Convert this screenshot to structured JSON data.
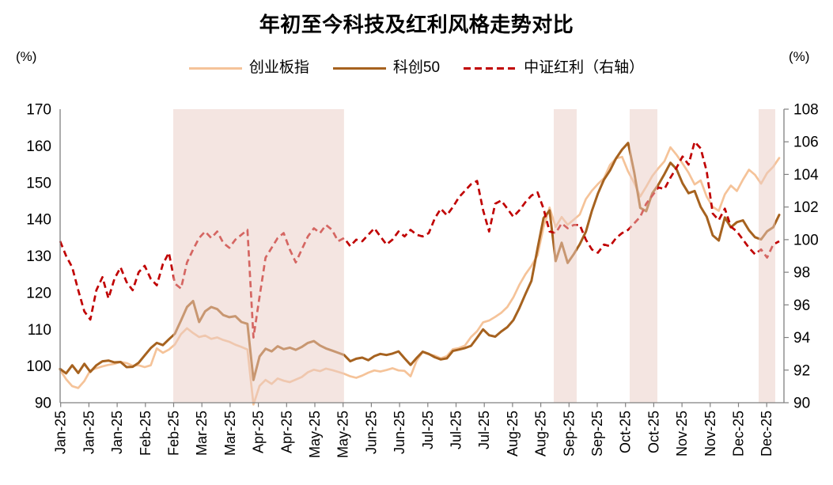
{
  "chart_data": {
    "type": "line",
    "title": "年初至今科技及红利风格走势对比",
    "legend_position": "top",
    "grid": false,
    "left_axis": {
      "unit": "(%)",
      "min": 90,
      "max": 170,
      "step": 10,
      "tick_labels": [
        "90",
        "100",
        "110",
        "120",
        "130",
        "140",
        "150",
        "160",
        "170"
      ]
    },
    "right_axis": {
      "unit": "(%)",
      "min": 90,
      "max": 108,
      "step": 2,
      "tick_labels": [
        "90",
        "92",
        "94",
        "96",
        "98",
        "100",
        "102",
        "104",
        "106",
        "108"
      ]
    },
    "x_axis": {
      "tick_labels": [
        "Jan-25",
        "Jan-25",
        "Jan-25",
        "Feb-25",
        "Feb-25",
        "Mar-25",
        "Mar-25",
        "Apr-25",
        "Apr-25",
        "May-25",
        "May-25",
        "Jun-25",
        "Jun-25",
        "Jul-25",
        "Jul-25",
        "Jul-25",
        "Aug-25",
        "Aug-25",
        "Sep-25",
        "Sep-25",
        "Oct-25",
        "Oct-25",
        "Nov-25",
        "Nov-25",
        "Dec-25",
        "Dec-25"
      ]
    },
    "highlight_bands": {
      "color": "#E9CBC4",
      "opacity": 0.5,
      "x_fractions": [
        [
          0.1563,
          0.3923
        ],
        [
          0.682,
          0.7137
        ],
        [
          0.7869,
          0.8251
        ],
        [
          0.965,
          0.988
        ]
      ]
    },
    "axis_color": "#808080",
    "series": [
      {
        "name": "创业板指",
        "axis": "left",
        "color": "#F5C399",
        "style": "solid",
        "values": [
          98.9,
          96.4,
          94.5,
          94.0,
          95.9,
          98.8,
          99.4,
          99.9,
          100.3,
          100.6,
          101.1,
          100.8,
          100.1,
          100.2,
          99.7,
          100.2,
          104.8,
          103.6,
          104.5,
          105.9,
          108.7,
          110.3,
          109.0,
          107.9,
          108.3,
          107.4,
          107.8,
          107.1,
          106.6,
          105.8,
          105.2,
          104.5,
          89.5,
          94.6,
          96.2,
          95.1,
          96.6,
          96.0,
          95.6,
          96.3,
          97.0,
          98.3,
          99.0,
          98.6,
          99.3,
          98.9,
          98.4,
          97.9,
          97.2,
          96.8,
          97.4,
          98.2,
          98.8,
          98.5,
          98.9,
          99.4,
          98.8,
          98.7,
          97.2,
          101.5,
          103.8,
          103.2,
          102.8,
          102.1,
          102.7,
          104.6,
          104.9,
          105.6,
          107.9,
          109.5,
          111.9,
          112.4,
          113.4,
          114.5,
          116.1,
          118.7,
          122.1,
          125.0,
          127.3,
          130.2,
          137.9,
          143.2,
          137.9,
          140.6,
          138.5,
          139.9,
          141.3,
          145.5,
          147.8,
          149.6,
          151.2,
          154.8,
          156.6,
          157.0,
          153.0,
          149.9,
          146.2,
          148.9,
          151.8,
          153.9,
          155.8,
          159.6,
          157.6,
          155.2,
          152.7,
          149.5,
          150.6,
          146.2,
          143.4,
          142.3,
          146.8,
          149.2,
          147.7,
          150.8,
          153.5,
          152.1,
          149.7,
          152.6,
          154.3,
          156.7
        ]
      },
      {
        "name": "科创50",
        "axis": "left",
        "color": "#A6621F",
        "style": "solid",
        "values": [
          99.2,
          98.0,
          100.2,
          98.1,
          100.6,
          98.4,
          100.2,
          101.3,
          101.5,
          101.0,
          101.1,
          99.7,
          99.8,
          100.9,
          102.9,
          104.9,
          106.3,
          105.7,
          107.3,
          108.8,
          112.4,
          116.1,
          117.7,
          112.0,
          114.9,
          116.1,
          115.5,
          113.9,
          113.3,
          113.6,
          112.0,
          111.5,
          96.2,
          102.6,
          104.7,
          104.0,
          105.4,
          104.6,
          105.0,
          104.4,
          105.2,
          106.3,
          106.8,
          105.6,
          104.8,
          104.2,
          103.6,
          103.0,
          101.3,
          102.0,
          102.3,
          101.6,
          102.7,
          103.3,
          103.0,
          103.4,
          104.0,
          102.1,
          100.3,
          102.2,
          103.9,
          103.3,
          102.4,
          101.8,
          102.1,
          104.1,
          104.5,
          104.9,
          105.5,
          107.7,
          110.0,
          108.4,
          108.0,
          109.4,
          110.6,
          112.5,
          115.8,
          119.6,
          123.2,
          132.0,
          140.3,
          142.4,
          128.6,
          133.6,
          128.1,
          130.5,
          133.2,
          136.6,
          142.3,
          147.0,
          150.8,
          153.3,
          156.6,
          159.0,
          160.8,
          152.8,
          143.1,
          142.2,
          147.1,
          149.4,
          152.3,
          155.4,
          153.7,
          149.8,
          147.1,
          147.7,
          143.4,
          140.7,
          135.6,
          134.2,
          140.5,
          137.8,
          139.2,
          139.7,
          137.0,
          135.1,
          134.5,
          136.7,
          137.8,
          141.2
        ]
      },
      {
        "name": "中证红利（右轴）",
        "axis": "right",
        "color": "#C00000",
        "style": "dashed",
        "values": [
          99.9,
          99.0,
          98.3,
          96.9,
          95.6,
          95.1,
          96.9,
          97.7,
          96.4,
          97.6,
          98.3,
          97.4,
          96.9,
          98.0,
          98.4,
          97.6,
          97.2,
          98.5,
          99.2,
          97.3,
          97.0,
          98.6,
          99.4,
          100.1,
          100.5,
          100.1,
          100.5,
          99.8,
          99.5,
          100.0,
          100.3,
          100.6,
          94.0,
          96.5,
          98.9,
          99.5,
          100.1,
          100.4,
          99.4,
          98.6,
          99.4,
          100.2,
          100.7,
          100.4,
          100.9,
          100.6,
          99.9,
          100.1,
          99.6,
          100.0,
          99.9,
          100.3,
          100.7,
          100.2,
          99.7,
          100.0,
          100.5,
          100.2,
          100.6,
          100.3,
          100.2,
          100.4,
          101.3,
          101.9,
          101.5,
          102.0,
          102.6,
          103.0,
          103.4,
          103.6,
          101.8,
          100.5,
          102.2,
          102.4,
          101.9,
          101.4,
          101.8,
          102.3,
          102.7,
          102.9,
          101.9,
          100.5,
          100.4,
          101.0,
          100.7,
          100.9,
          100.9,
          100.0,
          99.4,
          99.2,
          99.7,
          99.6,
          100.1,
          100.4,
          100.6,
          101.0,
          101.4,
          102.2,
          102.7,
          103.2,
          103.1,
          103.8,
          104.4,
          105.1,
          104.6,
          106.0,
          105.6,
          104.2,
          101.6,
          101.2,
          101.9,
          100.8,
          100.5,
          100.0,
          99.5,
          99.1,
          99.4,
          98.9,
          99.7,
          99.9
        ]
      }
    ]
  }
}
